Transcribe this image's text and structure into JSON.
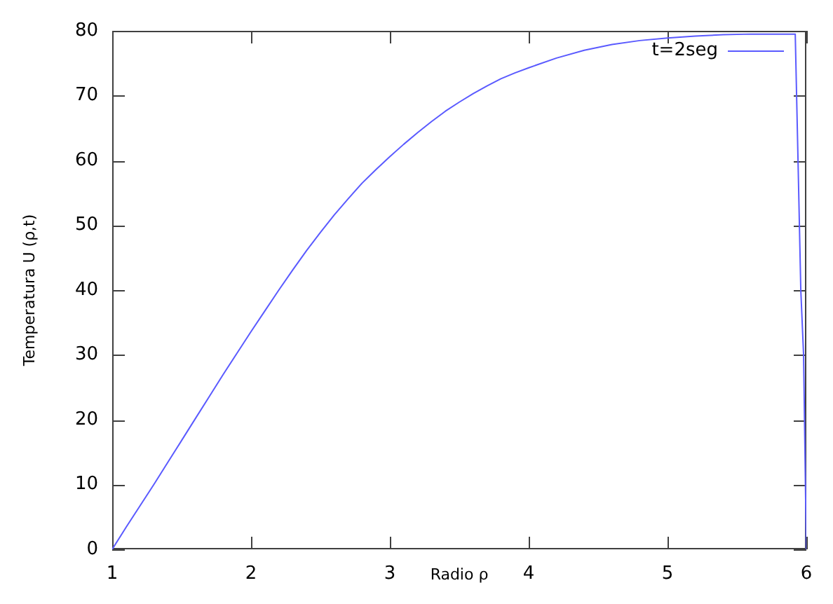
{
  "chart_data": {
    "type": "line",
    "xlabel": "Radio ρ",
    "ylabel": "Temperatura U (ρ,t)",
    "x": [
      1.0,
      1.1,
      1.2,
      1.3,
      1.4,
      1.5,
      1.6,
      1.7,
      1.8,
      1.9,
      2.0,
      2.1,
      2.2,
      2.3,
      2.4,
      2.5,
      2.6,
      2.7,
      2.8,
      2.9,
      3.0,
      3.1,
      3.2,
      3.3,
      3.4,
      3.5,
      3.6,
      3.7,
      3.8,
      3.9,
      4.0,
      4.2,
      4.4,
      4.6,
      4.8,
      5.0,
      5.2,
      5.4,
      5.6,
      5.8,
      5.92,
      5.94,
      5.96,
      5.98,
      6.0
    ],
    "series": [
      {
        "name": "t=2seg",
        "color": "#5a5aff",
        "values": [
          0,
          3.4,
          6.7,
          10.0,
          13.4,
          16.8,
          20.2,
          23.6,
          27.0,
          30.3,
          33.6,
          36.8,
          40.0,
          43.1,
          46.1,
          48.9,
          51.6,
          54.1,
          56.5,
          58.6,
          60.6,
          62.5,
          64.3,
          66.0,
          67.6,
          69.0,
          70.3,
          71.5,
          72.6,
          73.5,
          74.3,
          75.8,
          77.0,
          77.9,
          78.5,
          78.9,
          79.2,
          79.4,
          79.5,
          79.5,
          79.5,
          60,
          40,
          30,
          0
        ]
      }
    ],
    "xlim": [
      1,
      6
    ],
    "ylim": [
      0,
      80
    ],
    "xticks": [
      1,
      2,
      3,
      4,
      5,
      6
    ],
    "yticks": [
      0,
      10,
      20,
      30,
      40,
      50,
      60,
      70,
      80
    ],
    "legend": "top right",
    "marker": "none",
    "line_style": "solid"
  }
}
